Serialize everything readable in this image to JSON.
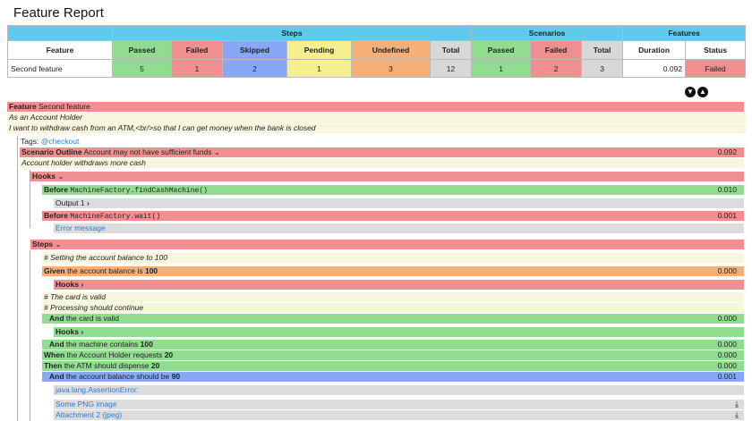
{
  "page": {
    "title": "Feature Report"
  },
  "stats": {
    "groups": {
      "steps": "Steps",
      "scenarios": "Scenarios",
      "features": "Features"
    },
    "headers": [
      "Feature",
      "Passed",
      "Failed",
      "Skipped",
      "Pending",
      "Undefined",
      "Total",
      "Passed",
      "Failed",
      "Total",
      "Duration",
      "Status"
    ],
    "row": {
      "feature": "Second feature",
      "steps_passed": "5",
      "steps_failed": "1",
      "steps_skipped": "2",
      "steps_pending": "1",
      "steps_undefined": "3",
      "steps_total": "12",
      "sc_passed": "1",
      "sc_failed": "2",
      "sc_total": "3",
      "duration": "0.092",
      "status": "Failed"
    }
  },
  "controls": {
    "collapse_all": "▼",
    "expand_all": "▲"
  },
  "feature": {
    "keyword": "Feature",
    "name": "Second feature",
    "desc1": "As an Account Holder",
    "desc2": "I want to withdraw cash from an ATM,<br/>so that I can get money when the bank is closed"
  },
  "scenario": {
    "tags_label": "Tags:",
    "tag": "@checkout",
    "keyword": "Scenario Outline",
    "name": "Account may not have sufficient funds",
    "duration": "0.092",
    "desc": "Account holder withdraws more cash",
    "hooks_label": "Hooks",
    "before1_kw": "Before",
    "before1_code": "MachineFactory.findCashMachine()",
    "before1_dur": "0.010",
    "output_label": "Output 1",
    "before2_kw": "Before",
    "before2_code": "MachineFactory.wait()",
    "before2_dur": "0.001",
    "error_msg": "Error message",
    "steps_label": "Steps"
  },
  "steps": {
    "c1": "# Setting the account balance to 100",
    "s1_kw": "Given",
    "s1_text": "the account balance is",
    "s1_val": "100",
    "s1_dur": "0.000",
    "hooks_a": "Hooks",
    "c2": "# The card is valid",
    "c3": "# Processing should continue",
    "s2_kw": "And",
    "s2_text": "the card is valid",
    "s2_dur": "0.000",
    "hooks_b": "Hooks",
    "s3_kw": "And",
    "s3_text": "the machine contains",
    "s3_val": "100",
    "s3_dur": "0.000",
    "s4_kw": "When",
    "s4_text": "the Account Holder requests",
    "s4_val": "20",
    "s4_dur": "0.000",
    "s5_kw": "Then",
    "s5_text": "the ATM should dispense",
    "s5_val": "20",
    "s5_dur": "0.000",
    "s6_kw": "And",
    "s6_text": "the account balance should be",
    "s6_val": "90",
    "s6_dur": "0.001",
    "error": "java.lang.AssertionError:",
    "emb1": "Some PNG image",
    "emb2": "Attachment 2 (jpeg)"
  },
  "colors": {
    "passed": "#92dc92",
    "failed": "#f08f8f",
    "skipped": "#88a8f5",
    "pending": "#f5ef8e",
    "undefined": "#f5b07a",
    "header": "#5fcbec"
  }
}
